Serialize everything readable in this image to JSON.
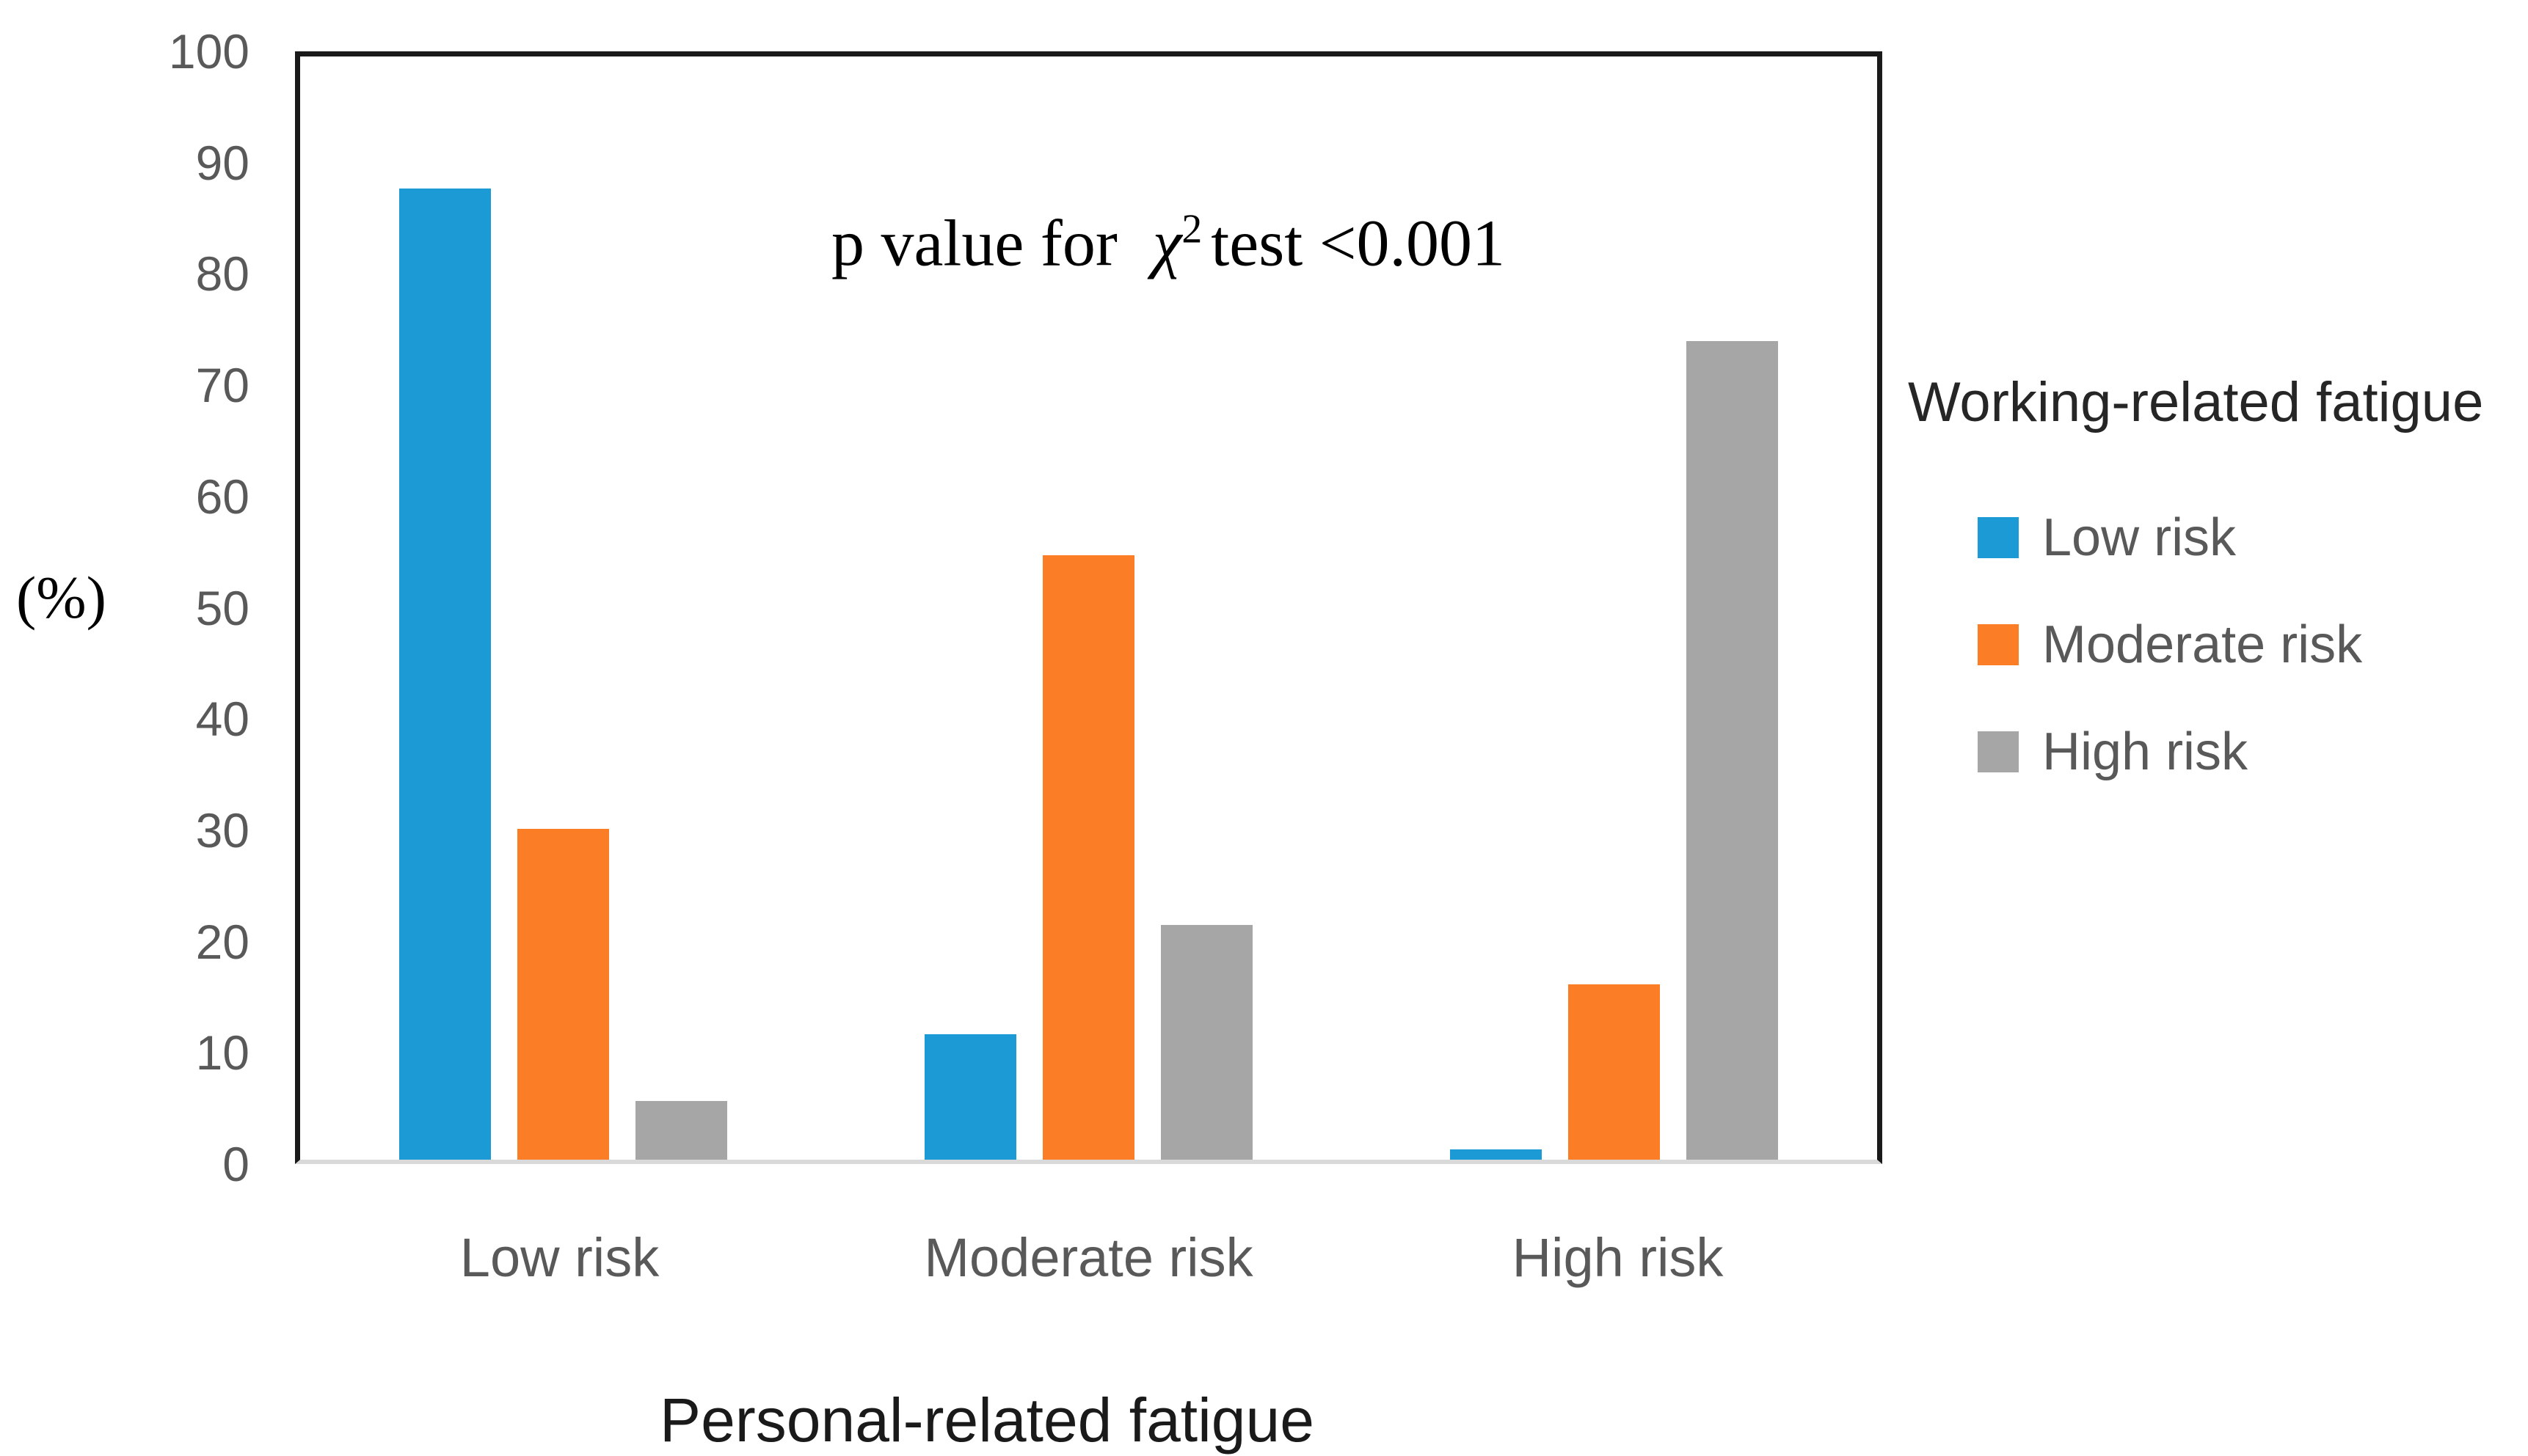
{
  "figure": {
    "annotation": {
      "prefix": "p value for",
      "chi": "χ",
      "exponent": "2",
      "suffix": "test <0.001"
    }
  },
  "chart_data": {
    "type": "bar",
    "title": "",
    "xlabel": "Personal-related fatigue",
    "ylabel": "(%)",
    "ylim": [
      0,
      100
    ],
    "yticks": [
      0,
      10,
      20,
      30,
      40,
      50,
      60,
      70,
      80,
      90,
      100
    ],
    "grid": false,
    "categories": [
      "Low risk",
      "Moderate risk",
      "High risk"
    ],
    "series": [
      {
        "name": "Low risk",
        "color": "#1C9AD6",
        "values": [
          88.0,
          11.4,
          0.9
        ]
      },
      {
        "name": "Moderate risk",
        "color": "#FB7D26",
        "values": [
          30.0,
          54.8,
          15.9
        ]
      },
      {
        "name": "High risk",
        "color": "#A6A6A6",
        "values": [
          5.3,
          21.3,
          74.2
        ]
      }
    ],
    "legend_position": "right",
    "legend_title": "Working-related fatigue",
    "annotation_text": "p value for χ² test <0.001",
    "colors": {
      "axis_tick_text": "#595959",
      "axis_title_text": "#1a1a1a",
      "plot_border": "#1a1a1a",
      "baseline": "#d9d9d9"
    }
  }
}
